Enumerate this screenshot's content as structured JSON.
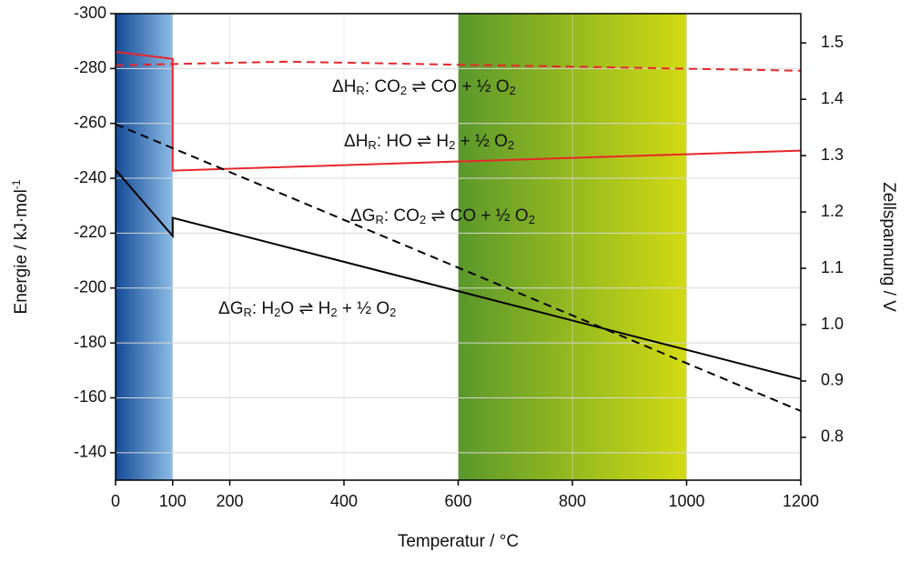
{
  "chart_data": {
    "type": "line",
    "x_label": "Temperatur  / °C",
    "y_label": [
      "Energie / kJ·mol",
      "-1"
    ],
    "y2_label": "Zellspannung / V",
    "xlim": [
      0,
      1200
    ],
    "xticks": [
      0,
      100,
      200,
      400,
      600,
      800,
      1000,
      1200
    ],
    "ylim": [
      -130,
      -300
    ],
    "yticks": [
      -300,
      -280,
      -260,
      -240,
      -220,
      -200,
      -180,
      -160,
      -140
    ],
    "y2lim": [
      0.724,
      1.552
    ],
    "y2ticks": [
      {
        "value": 0.8,
        "label": "0.8"
      },
      {
        "value": 0.9,
        "label": "0.9"
      },
      {
        "value": 1.0,
        "label": "1.0"
      },
      {
        "value": 1.1,
        "label": "1.1"
      },
      {
        "value": 1.2,
        "label": "1.2"
      },
      {
        "value": 1.3,
        "label": "1.3"
      },
      {
        "value": 1.4,
        "label": "1.4"
      },
      {
        "value": 1.5,
        "label": "1.5"
      }
    ],
    "grid": true,
    "shaded_ranges": [
      {
        "range": [
          0,
          100
        ],
        "colors": [
          "#134a96",
          "#8cbce6"
        ]
      },
      {
        "range": [
          600,
          1000
        ],
        "colors": [
          "#5a982c",
          "#d2da12"
        ]
      }
    ],
    "series": [
      {
        "color": "#e8262a",
        "dash": false,
        "x": [
          0,
          100,
          100,
          1200
        ],
        "values": [
          -286.1,
          -283.5,
          -242.8,
          -250.1
        ]
      },
      {
        "color": "#e8262a",
        "dash": true,
        "x": [
          0,
          300,
          1200
        ],
        "values": [
          -281.2,
          -282.5,
          -279.2
        ]
      },
      {
        "color": "#000000",
        "dash": false,
        "x": [
          0,
          100,
          100,
          1200
        ],
        "values": [
          -243.1,
          -219.0,
          -225.6,
          -166.8
        ]
      },
      {
        "color": "#000000",
        "dash": true,
        "x": [
          0,
          1200
        ],
        "values": [
          -259.7,
          -155.2
        ]
      }
    ],
    "annotations": [
      [
        "ΔH",
        "R",
        ": CO",
        "2",
        " ⇌ CO + ½ O",
        "2"
      ],
      [
        "ΔH",
        "R",
        ": H",
        "",
        "O ⇌ H",
        "2",
        " + ½ O",
        "2"
      ],
      [
        "ΔG",
        "R",
        ": CO",
        "2",
        " ⇌ CO + ½ O",
        "2"
      ],
      [
        "ΔG",
        "R",
        ": H",
        "2",
        "O ⇌ H",
        "2",
        " + ½ O",
        "2"
      ]
    ]
  }
}
